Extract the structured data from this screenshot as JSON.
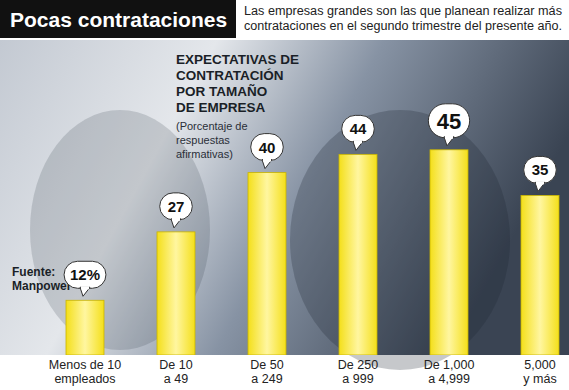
{
  "chart_data": {
    "type": "bar",
    "title": "Pocas contrataciones",
    "subtitle": "Las empresas grandes son las que planean realizar más\ncontrataciones en el segundo trimestre del presente año.",
    "annotation": "EXPECTATIVAS DE\nCONTRATACIÓN\nPOR TAMAÑO\nDE EMPRESA",
    "note": "(Porcentaje de\nrespuestas\nafirmativas)",
    "source": "Fuente:\nManpower",
    "categories": [
      "Menos de 10\nempleados",
      "De 10\na 49",
      "De 50\na 249",
      "De 250\na 999",
      "De 1,000\na 4,999",
      "5,000\ny más"
    ],
    "values": [
      12,
      27,
      40,
      44,
      45,
      35
    ],
    "value_labels": [
      "12%",
      "27",
      "40",
      "44",
      "45",
      "35"
    ],
    "color": "#f4df1a",
    "ylim": [
      0,
      50
    ],
    "yticks": [],
    "tick_labels": "x",
    "data_labels": true,
    "grid": false
  }
}
